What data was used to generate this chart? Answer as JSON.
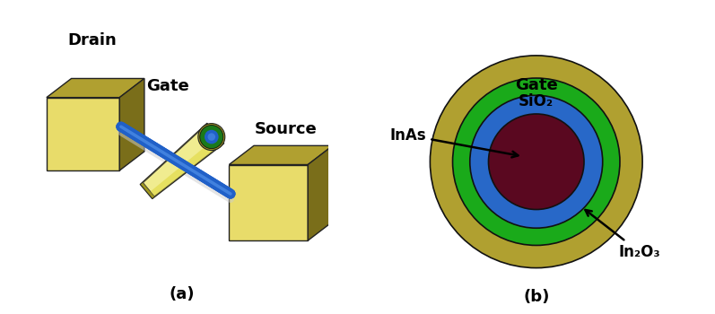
{
  "fig_width": 7.97,
  "fig_height": 3.5,
  "bg_color": "#ffffff",
  "panel_a_label": "(a)",
  "panel_b_label": "(b)",
  "drain_label": "Drain",
  "gate_label_a": "Gate",
  "source_label": "Source",
  "gate_label_b": "Gate",
  "sio2_label": "SiO₂",
  "inas_label": "InAs",
  "in2o3_label": "In₂O₃",
  "cube_face_light": "#e8dc6a",
  "cube_face_mid": "#d4c84a",
  "cube_side_color": "#7a6e1a",
  "cube_top_color": "#b0a030",
  "gate_cyl_light": "#f0ec90",
  "gate_cyl_mid": "#e0d840",
  "gate_cyl_dark": "#a09820",
  "blue_wire_color": "#2060c8",
  "blue_wire_light": "#5090e8",
  "green_ring_color": "#1a7a1a",
  "gate_outer_color": "#b0a030",
  "sio2_color": "#1aaa1a",
  "in2o3_color": "#2868c8",
  "inas_core_color": "#5a0820",
  "outer_r": 0.8,
  "sio2_r": 0.63,
  "in2o3_r": 0.5,
  "inas_r": 0.36
}
